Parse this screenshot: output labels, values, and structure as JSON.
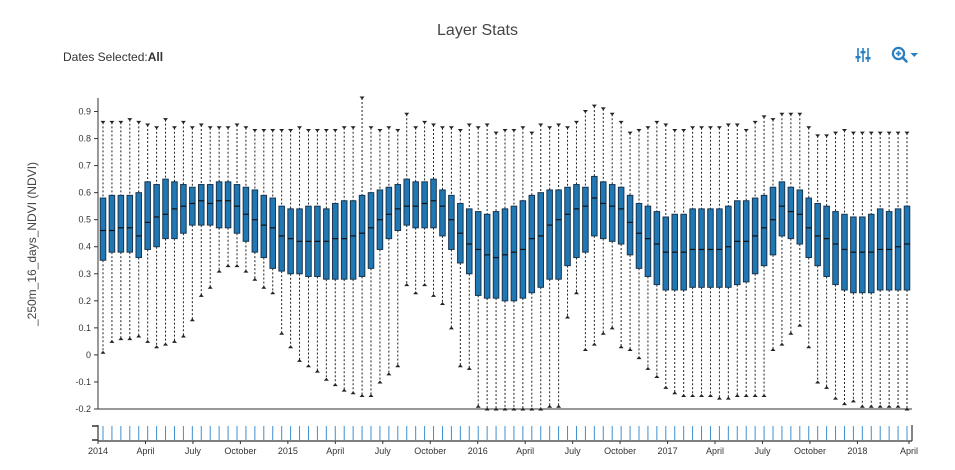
{
  "title": "Layer Stats",
  "dates": {
    "label": "Dates Selected:",
    "value": "All"
  },
  "toolbar": {
    "adjust_icon": "sliders-icon",
    "zoom_icon": "zoom-in-icon",
    "accent": "#2a7fc1"
  },
  "chart_data": {
    "type": "box",
    "title": "Layer Stats",
    "ylabel": "_250m_16_days_NDVI (NDVI)",
    "ylim": [
      -0.2,
      0.95
    ],
    "y_ticks": [
      0.9,
      0.8,
      0.7,
      0.6,
      0.5,
      0.4,
      0.3,
      0.2,
      0.1,
      0,
      -0.1,
      -0.2
    ],
    "x_start": "2014-01",
    "x_end": "2018-04",
    "x_tick_labels": [
      "2014",
      "April",
      "July",
      "October",
      "2015",
      "April",
      "July",
      "October",
      "2016",
      "April",
      "July",
      "October",
      "2017",
      "April",
      "July",
      "October",
      "2018",
      "April"
    ],
    "box_color": "#1f78b4",
    "grid": false,
    "series": [
      {
        "q3": [
          0.58,
          0.59,
          0.59,
          0.59,
          0.6,
          0.64,
          0.63,
          0.65,
          0.64,
          0.63,
          0.62,
          0.63,
          0.63,
          0.64,
          0.64,
          0.63,
          0.62,
          0.61,
          0.59,
          0.58,
          0.55,
          0.54,
          0.54,
          0.55,
          0.55,
          0.54,
          0.56,
          0.57,
          0.57,
          0.59,
          0.6,
          0.61,
          0.62,
          0.63,
          0.65,
          0.64,
          0.64,
          0.65,
          0.61,
          0.59,
          0.56,
          0.54,
          0.53,
          0.52,
          0.53,
          0.54,
          0.55,
          0.57,
          0.59,
          0.6,
          0.61,
          0.61,
          0.62,
          0.63,
          0.62,
          0.66,
          0.64,
          0.63,
          0.62,
          0.59,
          0.56,
          0.55,
          0.53,
          0.51,
          0.52,
          0.52,
          0.54,
          0.54,
          0.54,
          0.54,
          0.55,
          0.57,
          0.57,
          0.58,
          0.59,
          0.62,
          0.64,
          0.62,
          0.61,
          0.58,
          0.56,
          0.55,
          0.53,
          0.52,
          0.51,
          0.51,
          0.52,
          0.54,
          0.53,
          0.54,
          0.55
        ],
        "median": [
          0.46,
          0.46,
          0.47,
          0.47,
          0.44,
          0.49,
          0.51,
          0.52,
          0.54,
          0.55,
          0.56,
          0.57,
          0.56,
          0.57,
          0.57,
          0.55,
          0.52,
          0.5,
          0.48,
          0.47,
          0.44,
          0.43,
          0.42,
          0.42,
          0.42,
          0.42,
          0.43,
          0.43,
          0.44,
          0.45,
          0.47,
          0.5,
          0.52,
          0.54,
          0.55,
          0.55,
          0.56,
          0.57,
          0.55,
          0.5,
          0.45,
          0.41,
          0.39,
          0.37,
          0.36,
          0.37,
          0.38,
          0.39,
          0.43,
          0.44,
          0.48,
          0.5,
          0.52,
          0.54,
          0.55,
          0.58,
          0.56,
          0.55,
          0.54,
          0.49,
          0.45,
          0.43,
          0.41,
          0.38,
          0.38,
          0.38,
          0.39,
          0.39,
          0.39,
          0.39,
          0.4,
          0.42,
          0.42,
          0.44,
          0.47,
          0.5,
          0.55,
          0.53,
          0.52,
          0.47,
          0.44,
          0.43,
          0.41,
          0.39,
          0.38,
          0.38,
          0.38,
          0.39,
          0.39,
          0.4,
          0.41
        ],
        "q1": [
          0.35,
          0.38,
          0.38,
          0.38,
          0.36,
          0.39,
          0.4,
          0.43,
          0.43,
          0.45,
          0.48,
          0.48,
          0.48,
          0.47,
          0.47,
          0.45,
          0.42,
          0.38,
          0.36,
          0.32,
          0.31,
          0.3,
          0.3,
          0.29,
          0.29,
          0.28,
          0.28,
          0.28,
          0.28,
          0.29,
          0.32,
          0.39,
          0.43,
          0.46,
          0.48,
          0.47,
          0.47,
          0.47,
          0.44,
          0.39,
          0.34,
          0.3,
          0.22,
          0.21,
          0.21,
          0.2,
          0.2,
          0.21,
          0.23,
          0.25,
          0.28,
          0.28,
          0.33,
          0.36,
          0.38,
          0.44,
          0.43,
          0.42,
          0.41,
          0.37,
          0.32,
          0.29,
          0.26,
          0.24,
          0.24,
          0.24,
          0.25,
          0.25,
          0.25,
          0.25,
          0.25,
          0.26,
          0.27,
          0.3,
          0.33,
          0.37,
          0.44,
          0.43,
          0.41,
          0.36,
          0.33,
          0.29,
          0.26,
          0.24,
          0.23,
          0.23,
          0.23,
          0.24,
          0.24,
          0.24,
          0.24
        ],
        "max": [
          0.86,
          0.86,
          0.86,
          0.87,
          0.86,
          0.85,
          0.84,
          0.87,
          0.84,
          0.86,
          0.84,
          0.85,
          0.84,
          0.84,
          0.84,
          0.85,
          0.84,
          0.83,
          0.83,
          0.83,
          0.83,
          0.83,
          0.84,
          0.83,
          0.83,
          0.83,
          0.83,
          0.84,
          0.84,
          0.95,
          0.84,
          0.83,
          0.84,
          0.83,
          0.89,
          0.84,
          0.86,
          0.85,
          0.84,
          0.84,
          0.83,
          0.85,
          0.84,
          0.85,
          0.82,
          0.83,
          0.83,
          0.84,
          0.82,
          0.85,
          0.84,
          0.85,
          0.84,
          0.86,
          0.9,
          0.92,
          0.91,
          0.89,
          0.86,
          0.82,
          0.83,
          0.84,
          0.86,
          0.85,
          0.83,
          0.83,
          0.84,
          0.84,
          0.84,
          0.84,
          0.85,
          0.85,
          0.83,
          0.86,
          0.88,
          0.87,
          0.89,
          0.89,
          0.89,
          0.84,
          0.81,
          0.81,
          0.82,
          0.83,
          0.82,
          0.82,
          0.82,
          0.82,
          0.82,
          0.82,
          0.82
        ],
        "min": [
          0.01,
          0.05,
          0.06,
          0.06,
          0.07,
          0.05,
          0.03,
          0.04,
          0.05,
          0.07,
          0.13,
          0.22,
          0.25,
          0.31,
          0.33,
          0.33,
          0.31,
          0.28,
          0.25,
          0.23,
          0.08,
          0.03,
          -0.02,
          -0.04,
          -0.06,
          -0.09,
          -0.11,
          -0.13,
          -0.14,
          -0.15,
          -0.15,
          -0.1,
          -0.07,
          -0.04,
          0.26,
          0.23,
          0.26,
          0.22,
          0.19,
          0.1,
          -0.04,
          -0.05,
          -0.19,
          -0.2,
          -0.2,
          -0.2,
          -0.2,
          -0.2,
          -0.2,
          -0.2,
          -0.19,
          -0.19,
          0.14,
          0.23,
          0.02,
          0.04,
          0.08,
          0.1,
          0.03,
          0.02,
          -0.01,
          -0.05,
          -0.08,
          -0.12,
          -0.14,
          -0.15,
          -0.15,
          -0.15,
          -0.15,
          -0.16,
          -0.16,
          -0.15,
          -0.15,
          -0.15,
          -0.15,
          0.02,
          0.04,
          0.08,
          0.11,
          0.03,
          -0.1,
          -0.12,
          -0.16,
          -0.18,
          -0.17,
          -0.19,
          -0.19,
          -0.19,
          -0.19,
          -0.19,
          -0.2
        ]
      }
    ]
  }
}
